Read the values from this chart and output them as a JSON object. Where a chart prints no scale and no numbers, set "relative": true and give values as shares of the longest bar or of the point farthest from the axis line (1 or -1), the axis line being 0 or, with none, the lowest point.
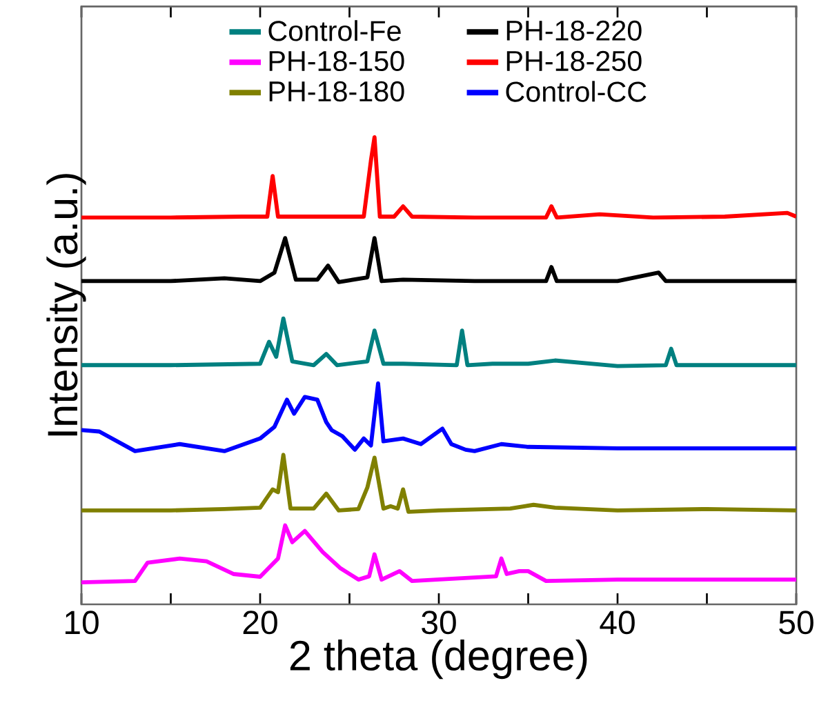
{
  "chart_data": {
    "type": "line",
    "relative": true,
    "xlabel": "2 theta (degree)",
    "ylabel": "Intensity (a.u.)",
    "xlim": [
      10,
      50
    ],
    "xticks": [
      10,
      {
        "value": 15,
        "label": null
      },
      20,
      {
        "value": 25,
        "label": null
      },
      30,
      {
        "value": 35,
        "label": null
      },
      40,
      {
        "value": 45,
        "label": null
      },
      50
    ],
    "legend": "top",
    "tick_labels": "x",
    "series": [
      {
        "name": "Control-Fe",
        "color": "#008080",
        "x": [
          10,
          15,
          20,
          20.5,
          20.9,
          21.3,
          21.8,
          23,
          23.7,
          24.3,
          26,
          26.4,
          26.9,
          28,
          31,
          31.3,
          31.6,
          33,
          35,
          36.5,
          40,
          42.7,
          43,
          43.3,
          46,
          50
        ],
        "values": [
          0.512,
          0.512,
          0.515,
          0.562,
          0.53,
          0.612,
          0.52,
          0.512,
          0.536,
          0.512,
          0.52,
          0.586,
          0.515,
          0.515,
          0.512,
          0.586,
          0.512,
          0.515,
          0.515,
          0.522,
          0.51,
          0.512,
          0.547,
          0.512,
          0.512,
          0.512
        ]
      },
      {
        "name": "PH-18-220",
        "color": "#000000",
        "x": [
          10,
          15,
          18,
          20,
          20.8,
          21.4,
          22,
          23.2,
          23.8,
          24.4,
          26,
          26.4,
          26.8,
          28,
          32,
          36,
          36.3,
          36.6,
          40,
          42.3,
          42.7,
          46,
          50
        ],
        "values": [
          0.692,
          0.692,
          0.698,
          0.692,
          0.71,
          0.784,
          0.695,
          0.695,
          0.725,
          0.69,
          0.7,
          0.784,
          0.692,
          0.695,
          0.692,
          0.692,
          0.722,
          0.692,
          0.692,
          0.71,
          0.692,
          0.692,
          0.692
        ]
      },
      {
        "name": "PH-18-150",
        "color": "#ff00ff",
        "x": [
          10,
          13,
          13.7,
          15.5,
          17,
          18.5,
          20,
          21,
          21.4,
          21.8,
          22.5,
          23.5,
          24.5,
          25.5,
          26.1,
          26.4,
          26.8,
          27.8,
          28.5,
          33.2,
          33.5,
          33.8,
          34.5,
          35,
          36,
          40,
          45,
          50
        ],
        "values": [
          0.047,
          0.05,
          0.089,
          0.098,
          0.092,
          0.065,
          0.059,
          0.098,
          0.169,
          0.133,
          0.157,
          0.112,
          0.077,
          0.053,
          0.06,
          0.107,
          0.053,
          0.071,
          0.05,
          0.06,
          0.098,
          0.065,
          0.071,
          0.071,
          0.05,
          0.053,
          0.053,
          0.053
        ]
      },
      {
        "name": "PH-18-250",
        "color": "#ff0000",
        "x": [
          10,
          15,
          19,
          20.4,
          20.7,
          21,
          23,
          25.8,
          26.2,
          26.4,
          26.7,
          27.5,
          28,
          28.5,
          32,
          36,
          36.3,
          36.6,
          39,
          42,
          46,
          49.5,
          50
        ],
        "values": [
          0.828,
          0.828,
          0.83,
          0.83,
          0.917,
          0.83,
          0.83,
          0.83,
          0.95,
          1,
          0.83,
          0.83,
          0.852,
          0.83,
          0.828,
          0.828,
          0.852,
          0.828,
          0.835,
          0.828,
          0.83,
          0.838,
          0.83
        ]
      },
      {
        "name": "PH-18-180",
        "color": "#808000",
        "x": [
          10,
          15,
          18,
          20,
          20.7,
          21,
          21.3,
          21.7,
          23,
          23.7,
          24.4,
          25.5,
          26,
          26.4,
          26.9,
          27.3,
          27.7,
          28,
          28.3,
          30,
          34,
          35.3,
          36.5,
          40,
          45,
          50
        ],
        "values": [
          0.201,
          0.201,
          0.204,
          0.207,
          0.246,
          0.24,
          0.32,
          0.205,
          0.205,
          0.237,
          0.201,
          0.204,
          0.25,
          0.314,
          0.205,
          0.21,
          0.205,
          0.246,
          0.198,
          0.201,
          0.205,
          0.213,
          0.207,
          0.201,
          0.204,
          0.201
        ]
      },
      {
        "name": "Control-CC",
        "color": "#0000ff",
        "x": [
          10,
          11,
          13,
          15.5,
          18,
          20,
          20.8,
          21.5,
          21.9,
          22.5,
          23.2,
          23.7,
          24,
          24.6,
          25.3,
          25.8,
          26.2,
          26.6,
          26.9,
          28,
          29,
          30.2,
          30.7,
          31.5,
          32,
          33.5,
          35,
          40,
          45,
          50
        ],
        "values": [
          0.373,
          0.37,
          0.328,
          0.343,
          0.328,
          0.355,
          0.38,
          0.438,
          0.408,
          0.444,
          0.438,
          0.39,
          0.373,
          0.36,
          0.331,
          0.355,
          0.34,
          0.473,
          0.349,
          0.355,
          0.343,
          0.376,
          0.343,
          0.331,
          0.328,
          0.343,
          0.337,
          0.334,
          0.334,
          0.334
        ]
      }
    ]
  }
}
